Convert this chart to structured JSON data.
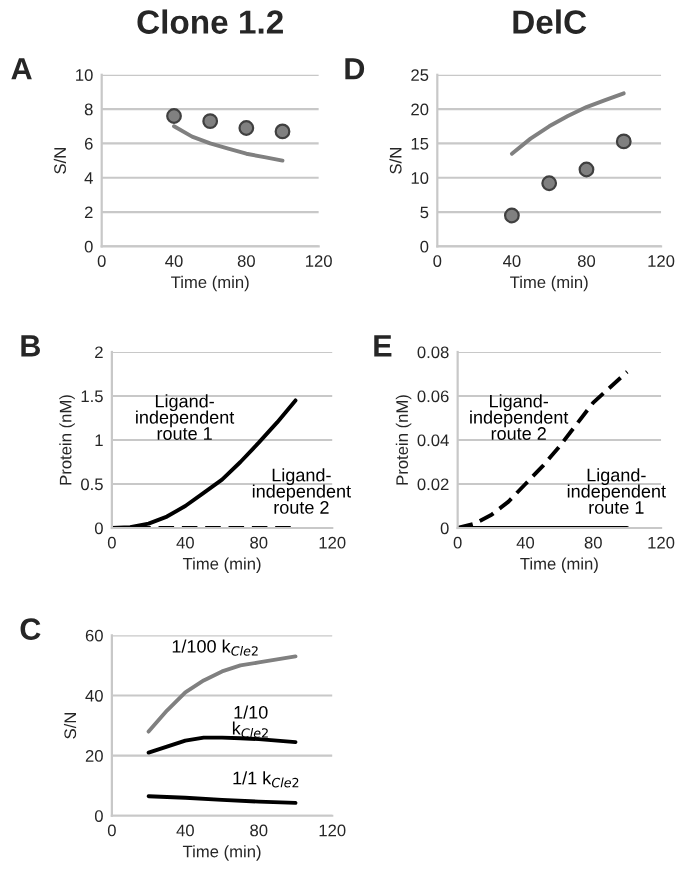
{
  "chart_data": [
    {
      "type": "line",
      "title": "Clone 1.2",
      "xlabel": "Time (min)",
      "ylabel": "S/N",
      "annotations": [
        "A"
      ],
      "xlim": [
        0,
        120
      ],
      "xticks": [
        0,
        40,
        80,
        120
      ],
      "ylim": [
        0,
        10
      ],
      "yticks": [
        0,
        2,
        4,
        6,
        8,
        10
      ],
      "grid": "y",
      "series": [
        {
          "color": "#808080",
          "line_style": "solid",
          "x": [
            40,
            50,
            60,
            70,
            80,
            90,
            100
          ],
          "values": [
            7.0,
            6.4,
            6.0,
            5.7,
            5.4,
            5.2,
            5.0
          ]
        },
        {
          "type": "scatter",
          "color": "#808080",
          "marker": "circle",
          "x": [
            40,
            60,
            80,
            100
          ],
          "values": [
            7.6,
            7.3,
            6.9,
            6.7
          ]
        }
      ]
    },
    {
      "type": "line",
      "xlabel": "Time (min)",
      "ylabel": "Protein (nM)",
      "annotations": [
        "B"
      ],
      "xlim": [
        0,
        120
      ],
      "xticks": [
        0,
        40,
        80,
        120
      ],
      "ylim": [
        0,
        2
      ],
      "yticks": [
        0,
        0.5,
        1,
        1.5,
        2
      ],
      "grid": "y",
      "series": [
        {
          "name": "Ligand-independent route 1",
          "color": "#000000",
          "line_style": "solid",
          "x": [
            0,
            10,
            20,
            30,
            40,
            50,
            60,
            70,
            80,
            90,
            100
          ],
          "values": [
            0,
            0.01,
            0.05,
            0.13,
            0.25,
            0.4,
            0.55,
            0.75,
            0.97,
            1.2,
            1.45
          ]
        },
        {
          "name": "Ligand-independent route 2",
          "color": "#000000",
          "line_style": "dashed",
          "x": [
            0,
            100
          ],
          "values": [
            0,
            0
          ]
        }
      ]
    },
    {
      "type": "line",
      "xlabel": "Time (min)",
      "ylabel": "S/N",
      "annotations": [
        "C"
      ],
      "xlim": [
        0,
        120
      ],
      "xticks": [
        0,
        40,
        80,
        120
      ],
      "ylim": [
        0,
        60
      ],
      "yticks": [
        0,
        20,
        40,
        60
      ],
      "grid": "y",
      "series": [
        {
          "name": "1/100 k$_{Cle2}$",
          "color": "#808080",
          "line_style": "solid",
          "x": [
            20,
            30,
            40,
            50,
            60,
            70,
            80,
            90,
            100
          ],
          "values": [
            28,
            35,
            41,
            45,
            48,
            50,
            51,
            52,
            53
          ]
        },
        {
          "name": "1/10 k$_{Cle2}$",
          "color": "#000000",
          "line_style": "solid",
          "x": [
            20,
            30,
            40,
            50,
            60,
            70,
            80,
            90,
            100
          ],
          "values": [
            21,
            23,
            25,
            26,
            26,
            25.8,
            25.5,
            25,
            24.5
          ]
        },
        {
          "name": "1/1 k$_{Cle2}$",
          "color": "#000000",
          "line_style": "solid",
          "x": [
            20,
            40,
            60,
            80,
            100
          ],
          "values": [
            6.5,
            6,
            5.3,
            4.7,
            4.3
          ]
        }
      ]
    },
    {
      "type": "line",
      "title": "DelC",
      "xlabel": "Time (min)",
      "ylabel": "S/N",
      "annotations": [
        "D"
      ],
      "xlim": [
        0,
        120
      ],
      "xticks": [
        0,
        40,
        80,
        120
      ],
      "ylim": [
        0,
        25
      ],
      "yticks": [
        0,
        5,
        10,
        15,
        20,
        25
      ],
      "grid": "y",
      "series": [
        {
          "color": "#808080",
          "line_style": "solid",
          "x": [
            40,
            50,
            60,
            70,
            80,
            90,
            100
          ],
          "values": [
            13.5,
            15.7,
            17.5,
            19.0,
            20.3,
            21.3,
            22.3
          ]
        },
        {
          "type": "scatter",
          "color": "#808080",
          "marker": "circle",
          "x": [
            40,
            60,
            80,
            100
          ],
          "values": [
            4.5,
            9.2,
            11.2,
            15.3
          ]
        }
      ]
    },
    {
      "type": "line",
      "xlabel": "Time (min)",
      "ylabel": "Protein (nM)",
      "annotations": [
        "E"
      ],
      "xlim": [
        0,
        120
      ],
      "xticks": [
        0,
        40,
        80,
        120
      ],
      "ylim": [
        0,
        0.08
      ],
      "yticks": [
        0,
        0.02,
        0.04,
        0.06,
        0.08
      ],
      "grid": "y",
      "series": [
        {
          "name": "Ligand-independent route 2",
          "color": "#000000",
          "line_style": "dashed",
          "x": [
            0,
            10,
            20,
            30,
            40,
            50,
            60,
            70,
            80,
            90,
            100
          ],
          "values": [
            0,
            0.002,
            0.006,
            0.012,
            0.02,
            0.028,
            0.037,
            0.047,
            0.057,
            0.064,
            0.071
          ]
        },
        {
          "name": "Ligand-independent route 1",
          "color": "#000000",
          "line_style": "solid",
          "x": [
            0,
            100
          ],
          "values": [
            0,
            0
          ]
        }
      ]
    }
  ]
}
